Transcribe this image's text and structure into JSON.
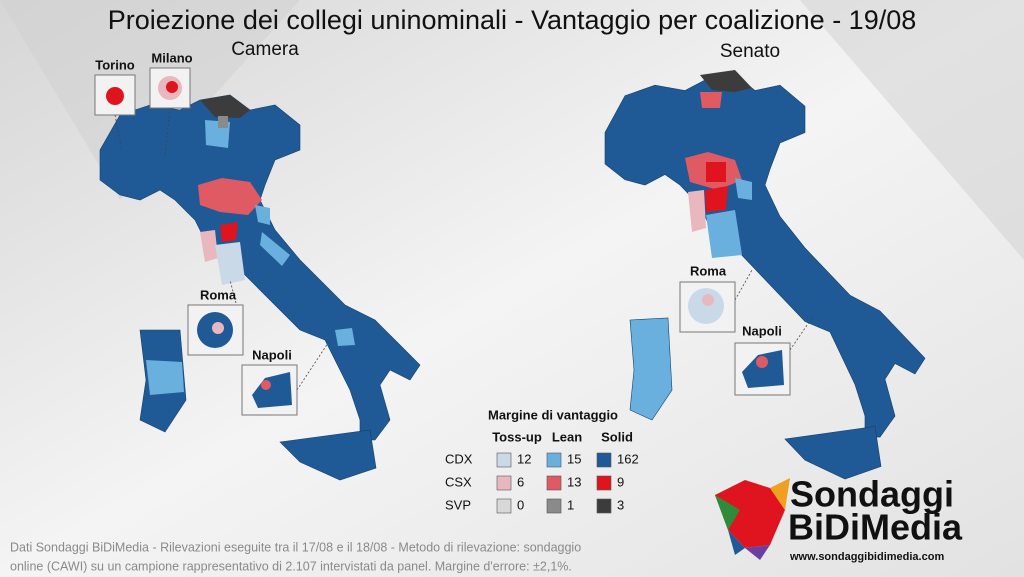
{
  "header": {
    "title": "Proiezione dei collegi uninominali - Vantaggio per coalizione - 19/08"
  },
  "maps": [
    {
      "label": "Camera",
      "insets": [
        "Torino",
        "Milano",
        "Roma",
        "Napoli"
      ]
    },
    {
      "label": "Senato",
      "insets": [
        "Roma",
        "Napoli"
      ]
    }
  ],
  "legend": {
    "title": "Margine di vantaggio",
    "columns": [
      "Toss-up",
      "Lean",
      "Solid"
    ],
    "rows": [
      {
        "label": "CDX",
        "values": [
          12,
          15,
          162
        ],
        "colors": [
          "#c9d9e8",
          "#6ab0de",
          "#1f5a96"
        ]
      },
      {
        "label": "CSX",
        "values": [
          6,
          13,
          9
        ],
        "colors": [
          "#e8b8be",
          "#e05a64",
          "#e0141e"
        ]
      },
      {
        "label": "SVP",
        "values": [
          0,
          1,
          3
        ],
        "colors": [
          "#d8d8d8",
          "#8a8a8a",
          "#3c3c3c"
        ]
      }
    ]
  },
  "footer": {
    "lines": [
      "Dati Sondaggi BiDiMedia - Rilevazioni eseguite tra il 17/08 e il 18/08 - Metodo di rilevazione: sondaggio",
      "online (CAWI) su un campione rappresentativo di 2.107 intervistati da panel. Margine d'errore: ±2,1%."
    ]
  },
  "logo": {
    "line1": "Sondaggi",
    "line2": "BiDiMedia",
    "url": "www.sondaggibidimedia.com"
  }
}
